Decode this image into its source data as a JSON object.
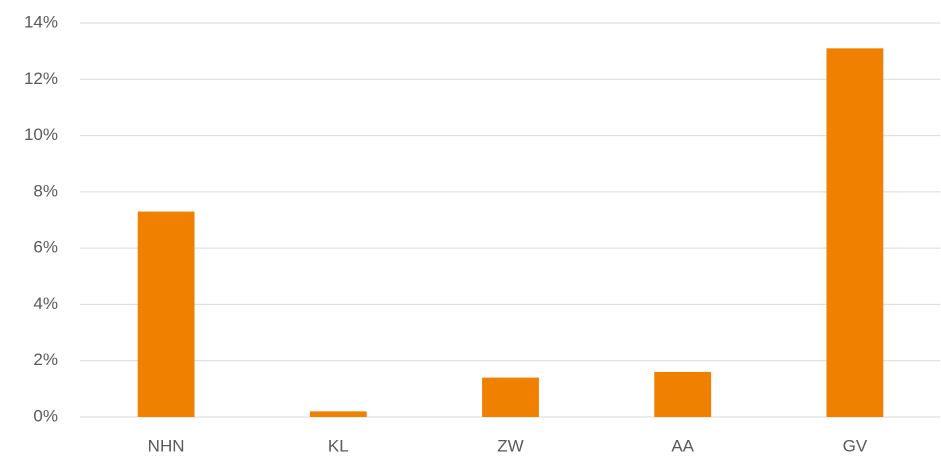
{
  "chart_data": {
    "type": "bar",
    "categories": [
      "NHN",
      "KL",
      "ZW",
      "AA",
      "GV"
    ],
    "values": [
      7.3,
      0.2,
      1.4,
      1.6,
      13.1
    ],
    "color": "#f08000",
    "ylim": [
      0,
      14
    ],
    "yticks": [
      {
        "value": 0,
        "label": "0%"
      },
      {
        "value": 2,
        "label": "2%"
      },
      {
        "value": 4,
        "label": "4%"
      },
      {
        "value": 6,
        "label": "6%"
      },
      {
        "value": 8,
        "label": "8%"
      },
      {
        "value": 10,
        "label": "10%"
      },
      {
        "value": 12,
        "label": "12%"
      },
      {
        "value": 14,
        "label": "14%"
      }
    ],
    "grid": true
  }
}
